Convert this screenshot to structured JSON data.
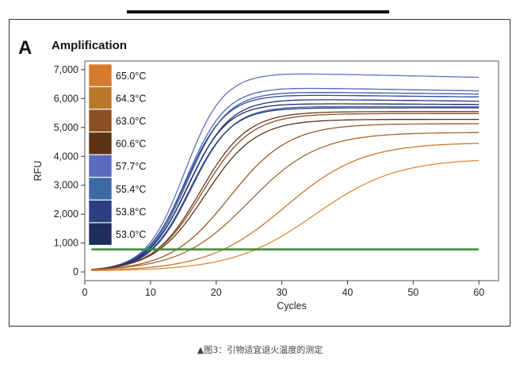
{
  "figure": {
    "panel_letter": "A",
    "caption": "▲图3：引物适宜退火温度的测定"
  },
  "chart_data": {
    "type": "line",
    "title": "Amplification",
    "xlabel": "Cycles",
    "ylabel": "RFU",
    "xlim": [
      0,
      63
    ],
    "ylim": [
      -300,
      7300
    ],
    "xticks": [
      0,
      10,
      20,
      30,
      40,
      50,
      60
    ],
    "xtick_labels": [
      "0",
      "10",
      "20",
      "30",
      "40",
      "50",
      "60"
    ],
    "yticks": [
      0,
      1000,
      2000,
      3000,
      4000,
      5000,
      6000,
      7000
    ],
    "ytick_labels": [
      "0",
      "1,000",
      "2,000",
      "3,000",
      "4,000",
      "5,000",
      "6,000",
      "7,000"
    ],
    "grid": false,
    "legend_position": "top-left",
    "legend": [
      {
        "label": "65.0°C",
        "color": "#d77a2c"
      },
      {
        "label": "64.3°C",
        "color": "#b9772c"
      },
      {
        "label": "63.0°C",
        "color": "#8b4f22"
      },
      {
        "label": "60.6°C",
        "color": "#5c3214"
      },
      {
        "label": "57.7°C",
        "color": "#5b6bbd"
      },
      {
        "label": "55.4°C",
        "color": "#3c6aa6"
      },
      {
        "label": "53.8°C",
        "color": "#2c3f82"
      },
      {
        "label": "53.0°C",
        "color": "#1e2d5e"
      }
    ],
    "threshold": {
      "y": 780,
      "color": "#3a8a34"
    },
    "series": [
      {
        "color": "#6470c8",
        "plateau": 6850,
        "midpoint": 15.2,
        "slope": 0.34,
        "drift": -0.007
      },
      {
        "color": "#5565b3",
        "plateau": 6350,
        "midpoint": 15.4,
        "slope": 0.33,
        "drift": -0.006
      },
      {
        "color": "#3c5aa6",
        "plateau": 6200,
        "midpoint": 15.6,
        "slope": 0.33,
        "drift": -0.004
      },
      {
        "color": "#2b4a94",
        "plateau": 6100,
        "midpoint": 15.3,
        "slope": 0.33,
        "drift": -0.004
      },
      {
        "color": "#27357a",
        "plateau": 5950,
        "midpoint": 15.8,
        "slope": 0.32,
        "drift": -0.004
      },
      {
        "color": "#1e2d5e",
        "plateau": 5800,
        "midpoint": 15.6,
        "slope": 0.33,
        "drift": -0.002
      },
      {
        "color": "#4b5fb0",
        "plateau": 5700,
        "midpoint": 16.2,
        "slope": 0.32,
        "drift": -0.001
      },
      {
        "color": "#243a78",
        "plateau": 5650,
        "midpoint": 16.0,
        "slope": 0.32,
        "drift": 0.0
      },
      {
        "color": "#6b3a1a",
        "plateau": 5520,
        "midpoint": 17.6,
        "slope": 0.28,
        "drift": 0.0
      },
      {
        "color": "#8b4f22",
        "plateau": 5450,
        "midpoint": 17.9,
        "slope": 0.27,
        "drift": 0.0
      },
      {
        "color": "#5c3214",
        "plateau": 5250,
        "midpoint": 18.3,
        "slope": 0.26,
        "drift": 0.0
      },
      {
        "color": "#9a5a28",
        "plateau": 5100,
        "midpoint": 22.0,
        "slope": 0.22,
        "drift": 0.0
      },
      {
        "color": "#a8682c",
        "plateau": 4800,
        "midpoint": 25.0,
        "slope": 0.19,
        "drift": 0.0
      },
      {
        "color": "#c8782e",
        "plateau": 4450,
        "midpoint": 30.5,
        "slope": 0.17,
        "drift": 0.0
      },
      {
        "color": "#e08a34",
        "plateau": 3900,
        "midpoint": 35.0,
        "slope": 0.16,
        "drift": 0.0
      }
    ]
  }
}
